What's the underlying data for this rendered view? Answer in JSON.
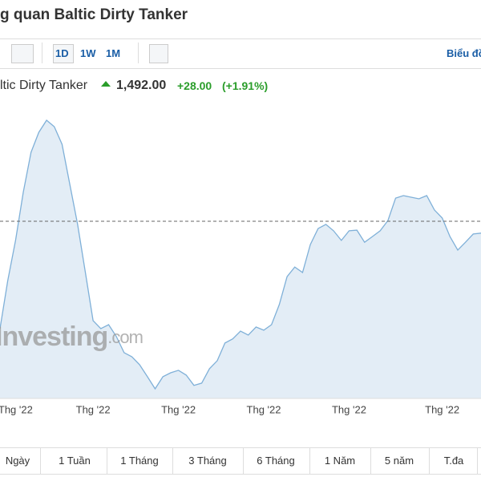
{
  "header": {
    "title": "g quan Baltic Dirty Tanker"
  },
  "toolbar": {
    "buttons": [
      "1D",
      "1W",
      "1M"
    ],
    "chart_link": "Biểu đồ"
  },
  "quote": {
    "name": "ltic Dirty Tanker",
    "price": "1,492.00",
    "change": "+28.00",
    "change_pct": "(+1.91%)"
  },
  "watermark": {
    "brand": "Investing",
    "suffix": ".com"
  },
  "chart_data": {
    "type": "area",
    "color": "#7fb0d8",
    "fill": "#e3edf6",
    "categories": [
      null,
      null,
      "Thg '22",
      null,
      null,
      null,
      null,
      null,
      null,
      null,
      null,
      null,
      "Thg '22",
      null,
      null,
      null,
      null,
      null,
      null,
      null,
      null,
      null,
      null,
      "Thg '22",
      null,
      null,
      null,
      null,
      null,
      null,
      null,
      null,
      null,
      null,
      "Thg '22",
      null,
      null,
      null,
      null,
      null,
      null,
      null,
      null,
      null,
      null,
      "Thg '22",
      null,
      null,
      null,
      null,
      null,
      null,
      null,
      null,
      null,
      null,
      null,
      "Thg '22",
      null,
      null,
      null,
      null,
      null
    ],
    "values": [
      1023,
      1233,
      1408,
      1618,
      1793,
      1880,
      1933,
      1905,
      1828,
      1653,
      1478,
      1268,
      1058,
      1023,
      1040,
      988,
      918,
      900,
      865,
      813,
      760,
      813,
      830,
      841,
      820,
      775,
      785,
      848,
      883,
      960,
      978,
      1012,
      995,
      1030,
      1016,
      1040,
      1128,
      1250,
      1292,
      1268,
      1390,
      1460,
      1478,
      1450,
      1408,
      1450,
      1453,
      1400,
      1425,
      1450,
      1495,
      1593,
      1604,
      1597,
      1590,
      1604,
      1541,
      1506,
      1425,
      1366,
      1400,
      1436,
      1440
    ],
    "current": 1492,
    "ylim": [
      718,
      2003
    ]
  },
  "periods": [
    "Ngày",
    "1 Tuần",
    "1 Tháng",
    "3 Tháng",
    "6 Tháng",
    "1 Năm",
    "5 năm",
    "T.đa"
  ]
}
